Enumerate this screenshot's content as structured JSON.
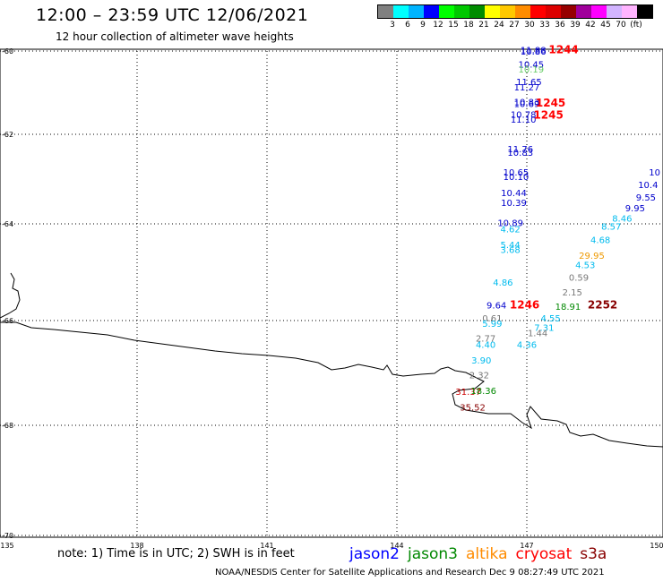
{
  "header": {
    "title": "12:00 – 23:59 UTC 12/06/2021",
    "subtitle": "12 hour collection of altimeter wave heights"
  },
  "color_scale": {
    "unit": "(ft)",
    "ticks": [
      "3",
      "6",
      "9",
      "12",
      "15",
      "18",
      "21",
      "24",
      "27",
      "30",
      "33",
      "36",
      "39",
      "42",
      "45",
      "70"
    ],
    "colors": [
      "#808080",
      "#00ffff",
      "#00b4ff",
      "#0000ff",
      "#00ff00",
      "#00c800",
      "#008c00",
      "#ffff00",
      "#ffc800",
      "#ff8c00",
      "#ff0000",
      "#dc0000",
      "#960000",
      "#a0009b",
      "#ff00ff",
      "#d2b4ff",
      "#ffb4ff",
      "#000000"
    ]
  },
  "axes": {
    "lat_labels": [
      "-60",
      "-62",
      "-64",
      "-66",
      "-68",
      "-70"
    ],
    "lon_labels": [
      "135",
      "138",
      "141",
      "144",
      "147",
      "150"
    ]
  },
  "observations": [
    {
      "text": "11.88",
      "color": "#0000cc",
      "lon": 147.15,
      "lat": -60.05
    },
    {
      "text": "10.86",
      "color": "#0000cc",
      "lon": 147.15,
      "lat": -60.09
    },
    {
      "text": "1244",
      "color": "#ff0000",
      "lon": 147.85,
      "lat": -60.05,
      "kind": "time"
    },
    {
      "text": "10.45",
      "color": "#0000cc",
      "lon": 147.1,
      "lat": -60.4
    },
    {
      "text": "10.19",
      "color": "#66cc66",
      "lon": 147.1,
      "lat": -60.52
    },
    {
      "text": "11.65",
      "color": "#0000cc",
      "lon": 147.05,
      "lat": -60.82
    },
    {
      "text": "11.27",
      "color": "#0000cc",
      "lon": 147.0,
      "lat": -60.95
    },
    {
      "text": "10.83",
      "color": "#0000cc",
      "lon": 147.0,
      "lat": -61.3
    },
    {
      "text": "10.69",
      "color": "#0000cc",
      "lon": 147.0,
      "lat": -61.34
    },
    {
      "text": "1245",
      "color": "#ff0000",
      "lon": 147.55,
      "lat": -61.33,
      "kind": "time"
    },
    {
      "text": "10.78",
      "color": "#0000cc",
      "lon": 146.92,
      "lat": -61.6
    },
    {
      "text": "11.10",
      "color": "#0000cc",
      "lon": 146.92,
      "lat": -61.72
    },
    {
      "text": "1245",
      "color": "#ff0000",
      "lon": 147.5,
      "lat": -61.62,
      "kind": "time"
    },
    {
      "text": "11.76",
      "color": "#0000cc",
      "lon": 146.85,
      "lat": -62.4
    },
    {
      "text": "10.83",
      "color": "#0000cc",
      "lon": 146.85,
      "lat": -62.48
    },
    {
      "text": "10.65",
      "color": "#0000cc",
      "lon": 146.75,
      "lat": -62.92
    },
    {
      "text": "10.10",
      "color": "#0000cc",
      "lon": 146.75,
      "lat": -63.02
    },
    {
      "text": "10.44",
      "color": "#0000cc",
      "lon": 146.7,
      "lat": -63.38
    },
    {
      "text": "10.39",
      "color": "#0000cc",
      "lon": 146.7,
      "lat": -63.6
    },
    {
      "text": "10.89",
      "color": "#0000cc",
      "lon": 146.62,
      "lat": -64.05
    },
    {
      "text": "4.62",
      "color": "#00bbee",
      "lon": 146.62,
      "lat": -64.18
    },
    {
      "text": "5.44",
      "color": "#00bbee",
      "lon": 146.62,
      "lat": -64.5
    },
    {
      "text": "3.68",
      "color": "#00bbee",
      "lon": 146.62,
      "lat": -64.6
    },
    {
      "text": "4.86",
      "color": "#00bbee",
      "lon": 146.45,
      "lat": -65.28
    },
    {
      "text": "9.64",
      "color": "#0000cc",
      "lon": 146.3,
      "lat": -65.75
    },
    {
      "text": "1246",
      "color": "#ff0000",
      "lon": 146.95,
      "lat": -65.75,
      "kind": "time"
    },
    {
      "text": "0.61",
      "color": "#777777",
      "lon": 146.2,
      "lat": -66.02
    },
    {
      "text": "5.99",
      "color": "#00bbee",
      "lon": 146.2,
      "lat": -66.12
    },
    {
      "text": "2.77",
      "color": "#777777",
      "lon": 146.05,
      "lat": -66.4
    },
    {
      "text": "4.40",
      "color": "#00bbee",
      "lon": 146.05,
      "lat": -66.52
    },
    {
      "text": "3.90",
      "color": "#00bbee",
      "lon": 145.95,
      "lat": -66.82
    },
    {
      "text": "2.32",
      "color": "#777777",
      "lon": 145.9,
      "lat": -67.1
    },
    {
      "text": "31.37",
      "color": "#cc0000",
      "lon": 145.65,
      "lat": -67.42
    },
    {
      "text": "18.36",
      "color": "#008800",
      "lon": 146.0,
      "lat": -67.4
    },
    {
      "text": "35.52",
      "color": "#880000",
      "lon": 145.75,
      "lat": -67.72
    },
    {
      "text": "10",
      "color": "#0000cc",
      "lon": 149.95,
      "lat": -62.92
    },
    {
      "text": "10.4",
      "color": "#0000cc",
      "lon": 149.8,
      "lat": -63.2
    },
    {
      "text": "9.55",
      "color": "#0000cc",
      "lon": 149.75,
      "lat": -63.48
    },
    {
      "text": "9.95",
      "color": "#0000cc",
      "lon": 149.5,
      "lat": -63.72
    },
    {
      "text": "8.46",
      "color": "#00bbee",
      "lon": 149.2,
      "lat": -63.95
    },
    {
      "text": "8.57",
      "color": "#00bbee",
      "lon": 148.95,
      "lat": -64.12
    },
    {
      "text": "4.68",
      "color": "#00bbee",
      "lon": 148.7,
      "lat": -64.4
    },
    {
      "text": "29.95",
      "color": "#ee9900",
      "lon": 148.5,
      "lat": -64.72
    },
    {
      "text": "4.53",
      "color": "#00bbee",
      "lon": 148.35,
      "lat": -64.92
    },
    {
      "text": "0.59",
      "color": "#777777",
      "lon": 148.2,
      "lat": -65.18
    },
    {
      "text": "2.15",
      "color": "#777777",
      "lon": 148.05,
      "lat": -65.48
    },
    {
      "text": "18.91",
      "color": "#008800",
      "lon": 147.95,
      "lat": -65.78
    },
    {
      "text": "2252",
      "color": "#880000",
      "lon": 148.75,
      "lat": -65.75,
      "kind": "time"
    },
    {
      "text": "4.55",
      "color": "#00bbee",
      "lon": 147.55,
      "lat": -66.02
    },
    {
      "text": "7.31",
      "color": "#00bbee",
      "lon": 147.4,
      "lat": -66.2
    },
    {
      "text": "1.44",
      "color": "#777777",
      "lon": 147.25,
      "lat": -66.3
    },
    {
      "text": "4.36",
      "color": "#00bbee",
      "lon": 147.0,
      "lat": -66.52
    }
  ],
  "footer": {
    "note": "note:  1) Time is in UTC;  2) SWH is in feet",
    "legend": [
      {
        "label": "jason2",
        "color": "#0000ff"
      },
      {
        "label": "jason3",
        "color": "#008800"
      },
      {
        "label": "altika",
        "color": "#ff8c00"
      },
      {
        "label": "cryosat",
        "color": "#ff0000"
      },
      {
        "label": "s3a",
        "color": "#880000"
      }
    ],
    "credit": "NOAA/NESDIS Center for Satellite Applications and Research    Dec  9 08:27:49 UTC 2021"
  }
}
